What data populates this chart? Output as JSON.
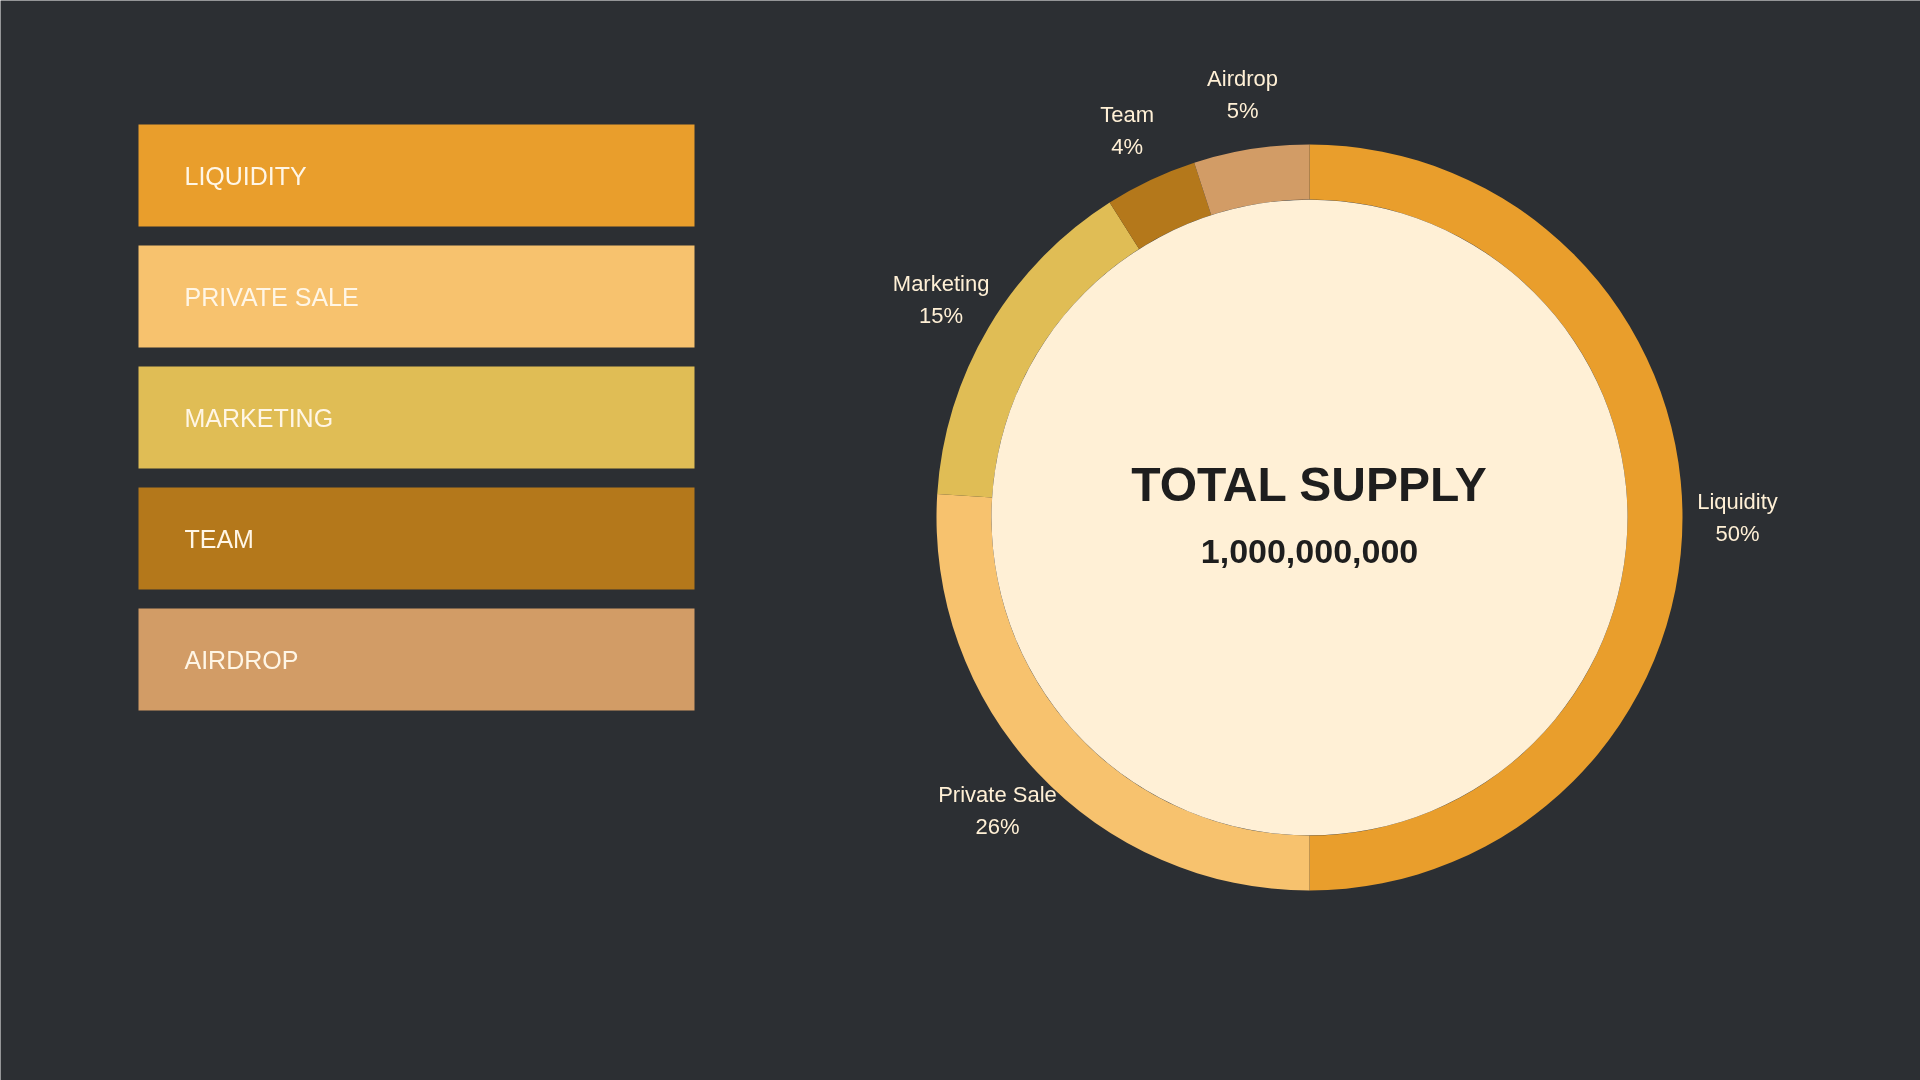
{
  "chart_data": {
    "type": "donut",
    "title": "TOTAL SUPPLY",
    "subtitle": "1,000,000,000",
    "categories": [
      "Liquidity",
      "Private Sale",
      "Marketing",
      "Team",
      "Airdrop"
    ],
    "values": [
      50,
      26,
      15,
      4,
      5
    ],
    "value_labels": [
      "50%",
      "26%",
      "15%",
      "4%",
      "5%"
    ],
    "colors": [
      "#e99e2c",
      "#f7c26e",
      "#e0bd55",
      "#b4781b",
      "#d29c66"
    ],
    "annotations": [
      "LIQUIDITY",
      "PRIVATE SALE",
      "MARKETING",
      "TEAM",
      "AIRDROP"
    ]
  }
}
